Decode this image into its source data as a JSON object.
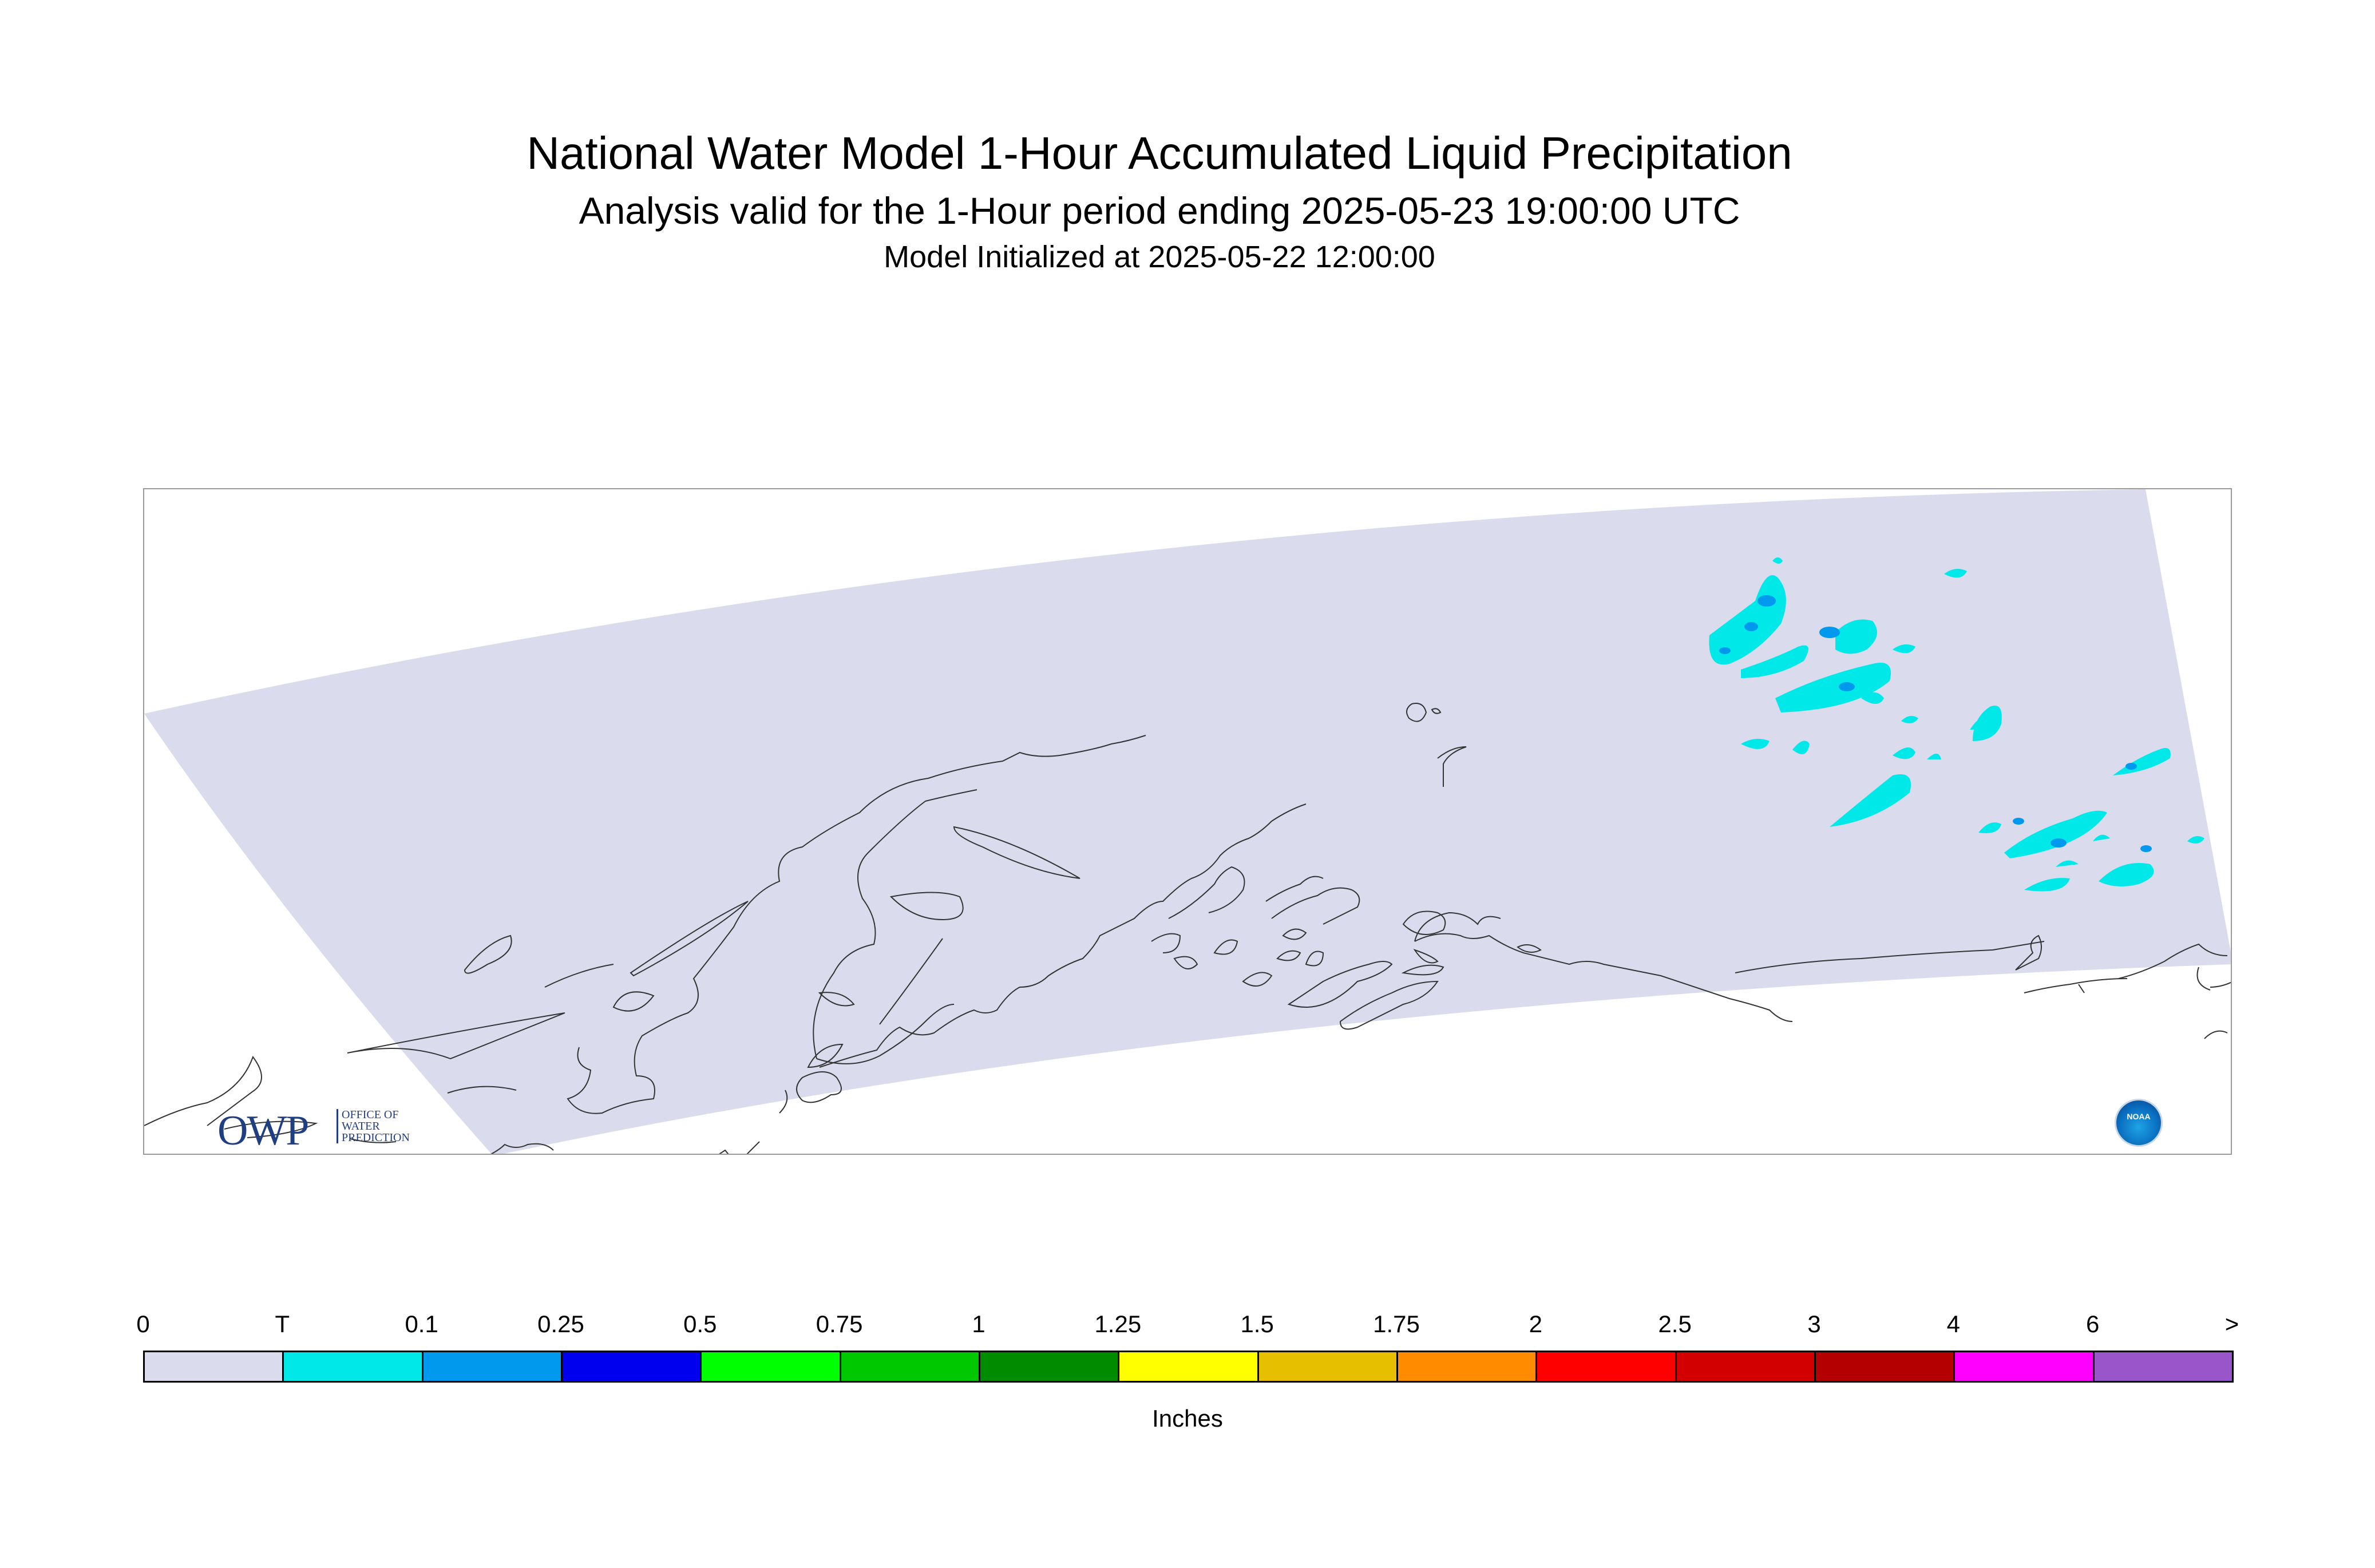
{
  "title": {
    "line1": "National Water Model 1-Hour Accumulated Liquid Precipitation",
    "line2": "Analysis valid for the 1-Hour period ending 2025-05-23 19:00:00 UTC",
    "line3": "Model Initialized at 2025-05-22 12:00:00"
  },
  "map": {
    "domain_fill": "#dadcee",
    "coast_color": "#333333"
  },
  "logos": {
    "owp_main": "OWP",
    "owp_sub": [
      "OFFICE OF",
      "WATER",
      "PREDICTION"
    ],
    "noaa_label": "NOAA"
  },
  "legend": {
    "units": "Inches",
    "labels": [
      "0",
      "T",
      "0.1",
      "0.25",
      "0.5",
      "0.75",
      "1",
      "1.25",
      "1.5",
      "1.75",
      "2",
      "2.5",
      "3",
      "4",
      "6",
      ">"
    ],
    "colors": [
      "#dadcee",
      "#00e8e8",
      "#0099ee",
      "#0000ee",
      "#00ff00",
      "#00c800",
      "#008c00",
      "#ffff00",
      "#e6c000",
      "#ff8c00",
      "#ff0000",
      "#d20000",
      "#b40000",
      "#ff00ff",
      "#9955c9"
    ]
  }
}
